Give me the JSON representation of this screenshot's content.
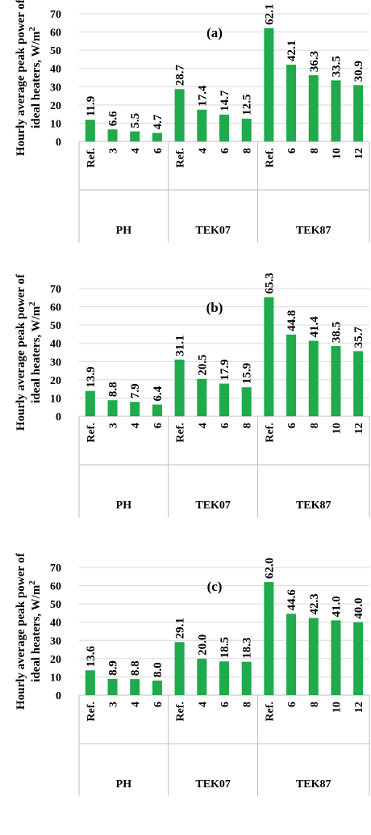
{
  "colors": {
    "bar": "#1faa4b",
    "grid": "#d9d9d9",
    "axis": "#bfbfbf",
    "text": "#000000"
  },
  "chart_data": [
    {
      "type": "bar",
      "title": "(a)",
      "ylabel_line1": "Hourly average peak power of",
      "ylabel_line2": "ideal heaters, W/m",
      "ylabel_sup": "2",
      "ylim": [
        0,
        70
      ],
      "yticks": [
        0,
        10,
        20,
        30,
        40,
        50,
        60,
        70
      ],
      "grid": true,
      "categories": [
        "Ref.",
        "3",
        "4",
        "6",
        "Ref.",
        "4",
        "6",
        "8",
        "Ref.",
        "6",
        "8",
        "10",
        "12"
      ],
      "groups": [
        {
          "label": "PH",
          "count": 4
        },
        {
          "label": "TEK07",
          "count": 4
        },
        {
          "label": "TEK87",
          "count": 5
        }
      ],
      "values": [
        11.9,
        6.6,
        5.5,
        4.7,
        28.7,
        17.4,
        14.7,
        12.5,
        62.1,
        42.1,
        36.3,
        33.5,
        30.9
      ],
      "value_labels": [
        "11.9",
        "6.6",
        "5.5",
        "4.7",
        "28.7",
        "17.4",
        "14.7",
        "12.5",
        "62.1",
        "42.1",
        "36.3",
        "33.5",
        "30.9"
      ]
    },
    {
      "type": "bar",
      "title": "(b)",
      "ylabel_line1": "Hourly average peak power of",
      "ylabel_line2": "ideal heaters, W/m",
      "ylabel_sup": "2",
      "ylim": [
        0,
        70
      ],
      "yticks": [
        0,
        10,
        20,
        30,
        40,
        50,
        60,
        70
      ],
      "grid": true,
      "categories": [
        "Ref.",
        "3",
        "4",
        "6",
        "Ref.",
        "4",
        "6",
        "8",
        "Ref.",
        "6",
        "8",
        "10",
        "12"
      ],
      "groups": [
        {
          "label": "PH",
          "count": 4
        },
        {
          "label": "TEK07",
          "count": 4
        },
        {
          "label": "TEK87",
          "count": 5
        }
      ],
      "values": [
        13.9,
        8.8,
        7.9,
        6.4,
        31.1,
        20.5,
        17.9,
        15.9,
        65.3,
        44.8,
        41.4,
        38.5,
        35.7
      ],
      "value_labels": [
        "13.9",
        "8.8",
        "7.9",
        "6.4",
        "31.1",
        "20.5",
        "17.9",
        "15.9",
        "65.3",
        "44.8",
        "41.4",
        "38.5",
        "35.7"
      ]
    },
    {
      "type": "bar",
      "title": "(c)",
      "ylabel_line1": "Hourly average peak power of",
      "ylabel_line2": "ideal heaters, W/m",
      "ylabel_sup": "2",
      "ylim": [
        0,
        70
      ],
      "yticks": [
        0,
        10,
        20,
        30,
        40,
        50,
        60,
        70
      ],
      "grid": true,
      "categories": [
        "Ref.",
        "3",
        "4",
        "6",
        "Ref.",
        "4",
        "6",
        "8",
        "Ref.",
        "6",
        "8",
        "10",
        "12"
      ],
      "groups": [
        {
          "label": "PH",
          "count": 4
        },
        {
          "label": "TEK07",
          "count": 4
        },
        {
          "label": "TEK87",
          "count": 5
        }
      ],
      "values": [
        13.6,
        8.9,
        8.8,
        8.0,
        29.1,
        20.0,
        18.5,
        18.3,
        62.0,
        44.6,
        42.3,
        41.0,
        40.0
      ],
      "value_labels": [
        "13.6",
        "8.9",
        "8.8",
        "8.0",
        "29.1",
        "20.0",
        "18.5",
        "18.3",
        "62.0",
        "44.6",
        "42.3",
        "41.0",
        "40.0"
      ]
    }
  ]
}
